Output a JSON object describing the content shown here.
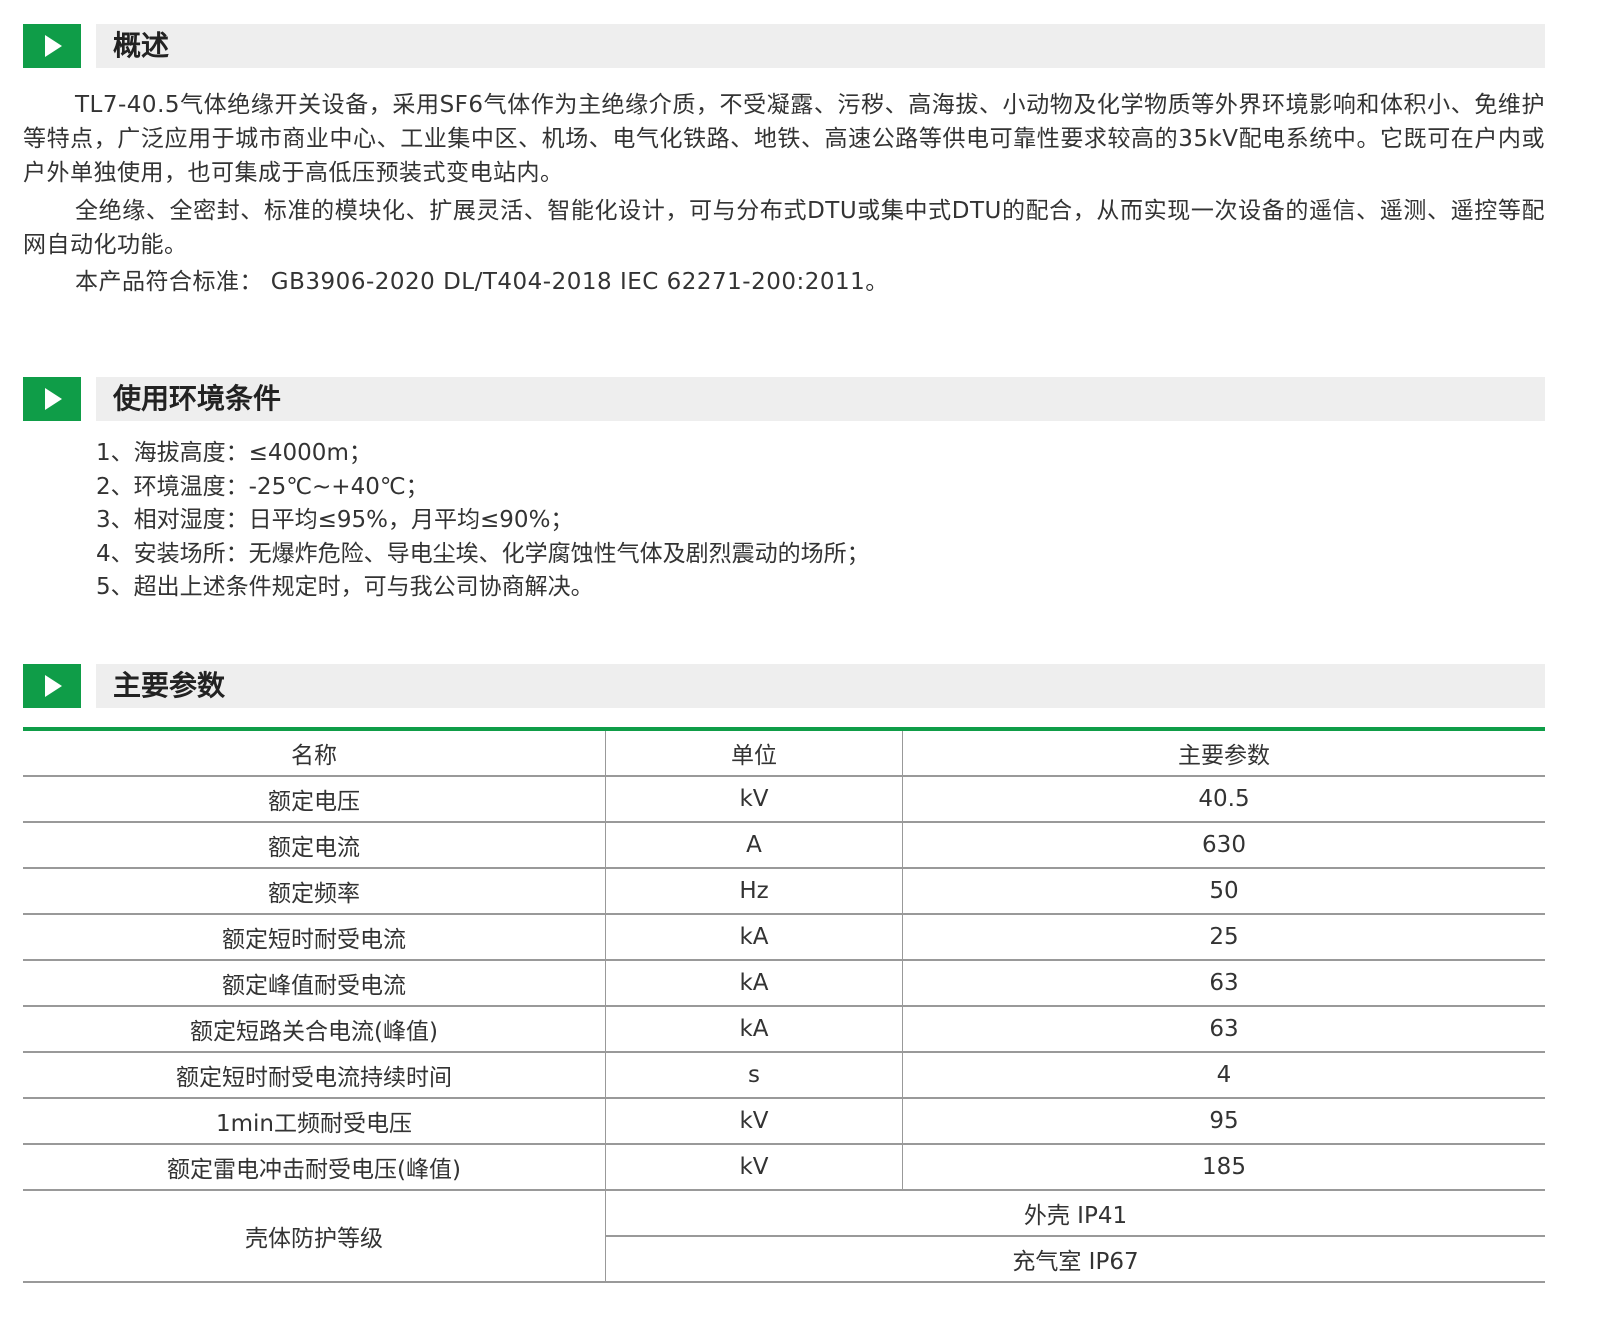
{
  "sections": {
    "overview": {
      "title": "概述",
      "paragraphs": [
        "TL7-40.5气体绝缘开关设备，采用SF6气体作为主绝缘介质，不受凝露、污秽、高海拔、小动物及化学物质等外界环境影响和体积小、免维护等特点，广泛应用于城市商业中心、工业集中区、机场、电气化铁路、地铁、高速公路等供电可靠性要求较高的35kV配电系统中。它既可在户内或户外单独使用，也可集成于高低压预装式变电站内。",
        "全绝缘、全密封、标准的模块化、扩展灵活、智能化设计，可与分布式DTU或集中式DTU的配合，从而实现一次设备的遥信、遥测、遥控等配网自动化功能。",
        "本产品符合标准： GB3906-2020 DL/T404-2018   IEC 62271-200:2011。"
      ]
    },
    "environment": {
      "title": "使用环境条件",
      "items": [
        "1、海拔高度：≤4000m；",
        "2、环境温度：-25℃~+40℃；",
        "3、相对湿度：日平均≤95%，月平均≤90%；",
        "4、安装场所：无爆炸危险、导电尘埃、化学腐蚀性气体及剧烈震动的场所；",
        "5、超出上述条件规定时，可与我公司协商解决。"
      ]
    },
    "params": {
      "title": "主要参数",
      "headers": [
        "名称",
        "单位",
        "主要参数"
      ],
      "rows": [
        [
          "额定电压",
          "kV",
          "40.5"
        ],
        [
          "额定电流",
          "A",
          "630"
        ],
        [
          "额定频率",
          "Hz",
          "50"
        ],
        [
          "额定短时耐受电流",
          "kA",
          "25"
        ],
        [
          "额定峰值耐受电流",
          "kA",
          "63"
        ],
        [
          "额定短路关合电流(峰值)",
          "kA",
          "63"
        ],
        [
          "额定短时耐受电流持续时间",
          "s",
          "4"
        ],
        [
          "1min工频耐受电压",
          "kV",
          "95"
        ],
        [
          "额定雷电冲击耐受电压(峰值)",
          "kV",
          "185"
        ]
      ],
      "protection": {
        "name": "壳体防护等级",
        "values": [
          "外壳 IP41",
          "充气室 IP67"
        ]
      }
    }
  },
  "colors": {
    "accent": "#0f9d48",
    "header_bg": "#eeeeee"
  }
}
